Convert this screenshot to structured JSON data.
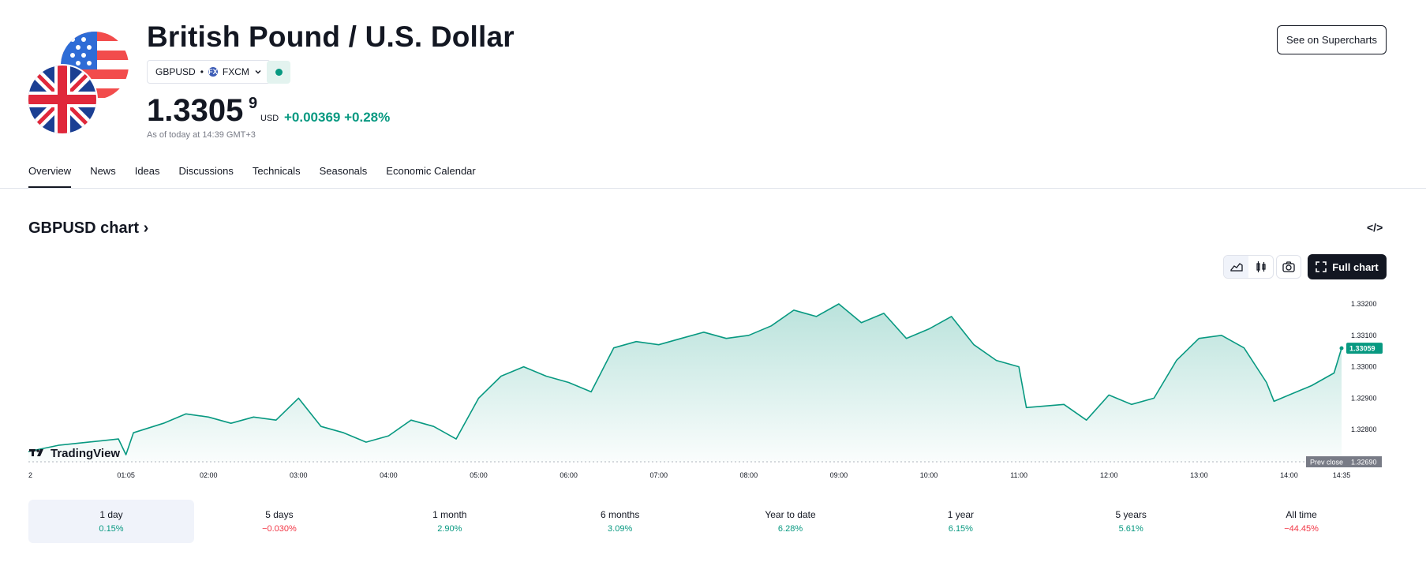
{
  "header": {
    "title": "British Pound / U.S. Dollar",
    "symbol": "GBPUSD",
    "separator": "•",
    "exchange": "FXCM",
    "exchange_icon": "FX",
    "price_main": "1.3305",
    "price_sup": "9",
    "currency": "USD",
    "change": "+0.00369",
    "change_pct": "+0.28%",
    "as_of": "As of today at 14:39 GMT+3",
    "supercharts_label": "See on Supercharts"
  },
  "tabs": [
    "Overview",
    "News",
    "Ideas",
    "Discussions",
    "Technicals",
    "Seasonals",
    "Economic Calendar"
  ],
  "chart_section": {
    "title": "GBPUSD chart",
    "title_arrow": "›",
    "embed_icon": "</>",
    "full_chart_label": "Full chart",
    "watermark": "TradingView"
  },
  "colors": {
    "line": "#089981",
    "positive": "#089981",
    "negative": "#f23645",
    "text": "#131722",
    "muted": "#787b86"
  },
  "icons": [
    "us-flag-icon",
    "uk-flag-icon",
    "chevron-down-icon",
    "status-dot-icon",
    "embed-code-icon",
    "area-chart-icon",
    "candles-icon",
    "camera-icon",
    "fullscreen-icon",
    "tradingview-logo-icon"
  ],
  "chart_data": {
    "type": "area",
    "x_ticks": [
      "2",
      "01:05",
      "02:00",
      "03:00",
      "04:00",
      "05:00",
      "06:00",
      "07:00",
      "08:00",
      "09:00",
      "10:00",
      "11:00",
      "12:00",
      "13:00",
      "14:00",
      "14:35"
    ],
    "y_ticks": [
      "1.32800",
      "1.32900",
      "1.33000",
      "1.33100",
      "1.33200"
    ],
    "ylim": [
      1.3269,
      1.3223
    ],
    "last_value_label": "1.33059",
    "prev_close_label": "Prev close",
    "prev_close_value": "1.32690",
    "points": [
      [
        "00:00",
        1.3273
      ],
      [
        "00:20",
        1.3275
      ],
      [
        "00:40",
        1.3276
      ],
      [
        "01:00",
        1.3277
      ],
      [
        "01:05",
        1.3272
      ],
      [
        "01:10",
        1.3279
      ],
      [
        "01:30",
        1.3282
      ],
      [
        "01:45",
        1.3285
      ],
      [
        "02:00",
        1.3284
      ],
      [
        "02:15",
        1.3282
      ],
      [
        "02:30",
        1.3284
      ],
      [
        "02:45",
        1.3283
      ],
      [
        "03:00",
        1.329
      ],
      [
        "03:15",
        1.3281
      ],
      [
        "03:30",
        1.3279
      ],
      [
        "03:45",
        1.3276
      ],
      [
        "04:00",
        1.3278
      ],
      [
        "04:15",
        1.3283
      ],
      [
        "04:30",
        1.3281
      ],
      [
        "04:45",
        1.3277
      ],
      [
        "05:00",
        1.329
      ],
      [
        "05:15",
        1.3297
      ],
      [
        "05:30",
        1.33
      ],
      [
        "05:45",
        1.3297
      ],
      [
        "06:00",
        1.3295
      ],
      [
        "06:15",
        1.3292
      ],
      [
        "06:30",
        1.3306
      ],
      [
        "06:45",
        1.3308
      ],
      [
        "07:00",
        1.3307
      ],
      [
        "07:15",
        1.3309
      ],
      [
        "07:30",
        1.3311
      ],
      [
        "07:45",
        1.3309
      ],
      [
        "08:00",
        1.331
      ],
      [
        "08:15",
        1.3313
      ],
      [
        "08:30",
        1.3318
      ],
      [
        "08:45",
        1.3316
      ],
      [
        "09:00",
        1.332
      ],
      [
        "09:15",
        1.3314
      ],
      [
        "09:30",
        1.3317
      ],
      [
        "09:45",
        1.3309
      ],
      [
        "10:00",
        1.3312
      ],
      [
        "10:15",
        1.3316
      ],
      [
        "10:30",
        1.3307
      ],
      [
        "10:45",
        1.3302
      ],
      [
        "11:00",
        1.33
      ],
      [
        "11:05",
        1.3287
      ],
      [
        "11:30",
        1.3288
      ],
      [
        "11:45",
        1.3283
      ],
      [
        "12:00",
        1.3291
      ],
      [
        "12:15",
        1.3288
      ],
      [
        "12:30",
        1.329
      ],
      [
        "12:45",
        1.3302
      ],
      [
        "13:00",
        1.3309
      ],
      [
        "13:15",
        1.331
      ],
      [
        "13:30",
        1.3306
      ],
      [
        "13:45",
        1.3295
      ],
      [
        "13:50",
        1.3289
      ],
      [
        "14:00",
        1.3291
      ],
      [
        "14:15",
        1.3294
      ],
      [
        "14:30",
        1.3298
      ],
      [
        "14:35",
        1.33059
      ]
    ]
  },
  "periods": [
    {
      "label": "1 day",
      "value": "0.15%",
      "sign": "pos"
    },
    {
      "label": "5 days",
      "value": "−0.030%",
      "sign": "neg"
    },
    {
      "label": "1 month",
      "value": "2.90%",
      "sign": "pos"
    },
    {
      "label": "6 months",
      "value": "3.09%",
      "sign": "pos"
    },
    {
      "label": "Year to date",
      "value": "6.28%",
      "sign": "pos"
    },
    {
      "label": "1 year",
      "value": "6.15%",
      "sign": "pos"
    },
    {
      "label": "5 years",
      "value": "5.61%",
      "sign": "pos"
    },
    {
      "label": "All time",
      "value": "−44.45%",
      "sign": "neg"
    }
  ]
}
